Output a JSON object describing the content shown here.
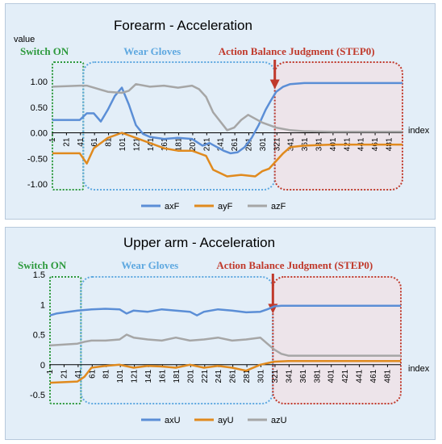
{
  "colors": {
    "x": "#5b8ed6",
    "y": "#e08a1e",
    "z": "#a6a6a6",
    "switch": "#2e9a3e",
    "wear": "#5ea8e0",
    "action": "#c0392b"
  },
  "chart_data": [
    {
      "type": "line",
      "title": "Forearm - Acceleration",
      "ylabel": "value",
      "xlabel": "index",
      "ylim": [
        -1.0,
        1.0
      ],
      "yticks": [
        "1.00",
        "0.50",
        "0.00",
        "-0.50",
        "-1.00"
      ],
      "ytick_values": [
        1.0,
        0.5,
        0.0,
        -0.5,
        -1.0
      ],
      "x_categories": [
        "1",
        "21",
        "41",
        "61",
        "81",
        "101",
        "121",
        "141",
        "161",
        "181",
        "201",
        "221",
        "241",
        "261",
        "281",
        "301",
        "321",
        "341",
        "361",
        "381",
        "401",
        "421",
        "441",
        "461",
        "481"
      ],
      "xlim": [
        1,
        500
      ],
      "annotations": [
        {
          "text": "Switch ON",
          "from": 1,
          "to": 45,
          "style": "switch"
        },
        {
          "text": "Wear Gloves",
          "from": 45,
          "to": 318,
          "style": "wear"
        },
        {
          "text": "Action Balance Judgment (STEP0)",
          "from": 318,
          "to": 500,
          "style": "action",
          "arrow_x": 318
        }
      ],
      "series": [
        {
          "name": "axF",
          "color_key": "x",
          "x": [
            1,
            40,
            50,
            60,
            70,
            80,
            90,
            100,
            110,
            120,
            130,
            140,
            160,
            180,
            200,
            215,
            225,
            245,
            255,
            265,
            275,
            285,
            295,
            305,
            312,
            320,
            330,
            340,
            360,
            400,
            500
          ],
          "y": [
            0.25,
            0.25,
            0.38,
            0.38,
            0.22,
            0.45,
            0.72,
            0.88,
            0.55,
            0.15,
            -0.02,
            -0.08,
            -0.12,
            -0.1,
            -0.12,
            -0.25,
            -0.2,
            -0.35,
            -0.4,
            -0.38,
            -0.28,
            -0.1,
            0.15,
            0.45,
            0.62,
            0.8,
            0.9,
            0.95,
            0.97,
            0.97,
            0.97
          ]
        },
        {
          "name": "ayF",
          "color_key": "y",
          "x": [
            1,
            40,
            50,
            60,
            80,
            100,
            120,
            140,
            160,
            180,
            200,
            220,
            230,
            250,
            270,
            290,
            300,
            310,
            320,
            330,
            340,
            360,
            400,
            500
          ],
          "y": [
            -0.4,
            -0.4,
            -0.6,
            -0.3,
            -0.1,
            0.0,
            -0.1,
            -0.2,
            -0.3,
            -0.35,
            -0.35,
            -0.45,
            -0.72,
            -0.85,
            -0.82,
            -0.85,
            -0.75,
            -0.7,
            -0.55,
            -0.4,
            -0.28,
            -0.25,
            -0.23,
            -0.23
          ]
        },
        {
          "name": "azF",
          "color_key": "z",
          "x": [
            1,
            40,
            50,
            60,
            80,
            100,
            110,
            120,
            140,
            160,
            180,
            200,
            210,
            220,
            230,
            250,
            260,
            270,
            280,
            300,
            320,
            340,
            360,
            400,
            500
          ],
          "y": [
            0.9,
            0.92,
            0.92,
            0.88,
            0.8,
            0.78,
            0.82,
            0.95,
            0.9,
            0.92,
            0.88,
            0.92,
            0.85,
            0.7,
            0.4,
            0.05,
            0.1,
            0.25,
            0.35,
            0.2,
            0.1,
            0.05,
            0.03,
            0.02,
            0.02
          ]
        }
      ],
      "legend": "bottom"
    },
    {
      "type": "line",
      "title": "Upper arm - Acceleration",
      "xlabel": "index",
      "ylim": [
        -0.5,
        1.5
      ],
      "yticks": [
        "1.5",
        "1",
        "0.5",
        "0",
        "-0.5"
      ],
      "ytick_values": [
        1.5,
        1.0,
        0.5,
        0.0,
        -0.5
      ],
      "x_categories": [
        "1",
        "21",
        "41",
        "61",
        "81",
        "101",
        "121",
        "141",
        "161",
        "181",
        "201",
        "221",
        "241",
        "261",
        "281",
        "301",
        "321",
        "341",
        "361",
        "381",
        "401",
        "421",
        "441",
        "461",
        "481"
      ],
      "xlim": [
        1,
        500
      ],
      "annotations": [
        {
          "text": "Switch ON",
          "from": 1,
          "to": 45,
          "style": "switch"
        },
        {
          "text": "Wear Gloves",
          "from": 45,
          "to": 318,
          "style": "wear"
        },
        {
          "text": "Action Balance Judgment (STEP0)",
          "from": 318,
          "to": 500,
          "style": "action",
          "arrow_x": 318
        }
      ],
      "series": [
        {
          "name": "axU",
          "color_key": "x",
          "x": [
            1,
            10,
            40,
            60,
            80,
            100,
            110,
            120,
            140,
            160,
            180,
            200,
            210,
            220,
            240,
            260,
            280,
            300,
            310,
            320,
            330,
            400,
            500
          ],
          "y": [
            0.82,
            0.85,
            0.9,
            0.92,
            0.93,
            0.92,
            0.85,
            0.9,
            0.88,
            0.92,
            0.9,
            0.88,
            0.82,
            0.88,
            0.92,
            0.9,
            0.87,
            0.88,
            0.92,
            0.97,
            0.98,
            0.98,
            0.98
          ]
        },
        {
          "name": "ayU",
          "color_key": "y",
          "x": [
            1,
            40,
            50,
            60,
            80,
            100,
            120,
            140,
            160,
            180,
            200,
            220,
            240,
            260,
            280,
            300,
            320,
            340,
            400,
            500
          ],
          "y": [
            -0.3,
            -0.28,
            -0.2,
            -0.05,
            -0.02,
            0.0,
            -0.05,
            -0.02,
            -0.03,
            -0.05,
            0.0,
            -0.05,
            -0.02,
            -0.05,
            -0.1,
            0.0,
            0.05,
            0.06,
            0.06,
            0.06
          ]
        },
        {
          "name": "azU",
          "color_key": "z",
          "x": [
            1,
            40,
            50,
            60,
            80,
            100,
            110,
            120,
            140,
            160,
            180,
            200,
            220,
            240,
            260,
            280,
            300,
            310,
            320,
            330,
            340,
            400,
            500
          ],
          "y": [
            0.32,
            0.35,
            0.38,
            0.4,
            0.4,
            0.42,
            0.5,
            0.45,
            0.42,
            0.4,
            0.45,
            0.4,
            0.42,
            0.45,
            0.4,
            0.42,
            0.45,
            0.35,
            0.25,
            0.18,
            0.15,
            0.15,
            0.15
          ]
        }
      ],
      "legend": "bottom"
    }
  ]
}
